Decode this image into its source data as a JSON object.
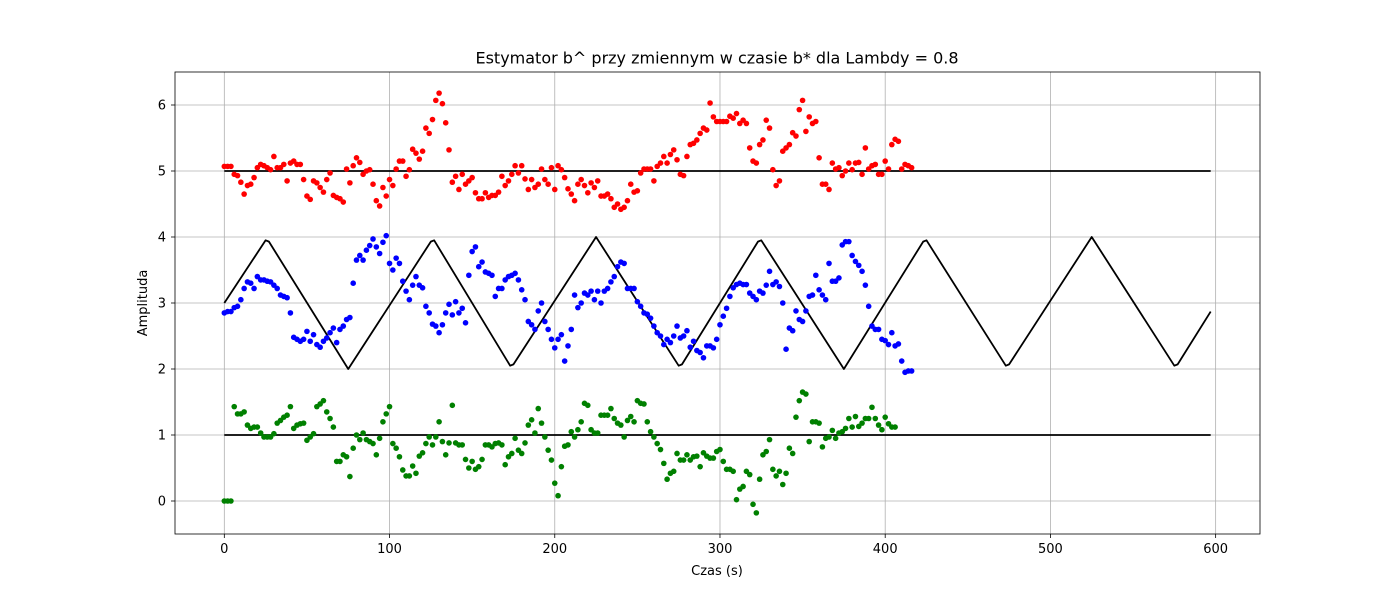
{
  "chart_data": {
    "type": "scatter",
    "title": "Estymator b^  przy zmiennym w czasie b* dla Lambdy = 0.8",
    "xlabel": "Czas (s)",
    "ylabel": "Amplituda",
    "xlim": [
      -29.85,
      626.85
    ],
    "ylim": [
      -0.5,
      6.5
    ],
    "xticks": [
      0,
      100,
      200,
      300,
      400,
      500,
      600
    ],
    "yticks": [
      0,
      1,
      2,
      3,
      4,
      5,
      6
    ],
    "grid": true,
    "x_step": 2,
    "reference_lines": [
      {
        "color": "#000000",
        "x": [
          0,
          597
        ],
        "y": [
          5,
          5
        ]
      },
      {
        "color": "#000000",
        "x": [
          0,
          597
        ],
        "y": [
          1,
          1
        ]
      },
      {
        "color": "#000000",
        "x": [
          0,
          25,
          27,
          75,
          125,
          127,
          173,
          175,
          225,
          275,
          277,
          323,
          325,
          375,
          423,
          425,
          473,
          475,
          525,
          575,
          577,
          597
        ],
        "y": [
          3,
          3.95,
          3.93,
          2.0,
          3.93,
          3.95,
          2.05,
          2.07,
          4.0,
          2.05,
          2.07,
          3.93,
          3.95,
          2.0,
          3.93,
          3.95,
          2.05,
          2.07,
          4.0,
          2.05,
          2.07,
          2.87
        ]
      }
    ],
    "series": [
      {
        "color": "#ff0000",
        "y": [
          5.07,
          5.07,
          5.07,
          4.95,
          4.93,
          4.83,
          4.65,
          4.78,
          4.8,
          4.9,
          5.05,
          5.1,
          5.08,
          5.05,
          5.02,
          5.22,
          5.05,
          5.05,
          5.1,
          4.85,
          5.12,
          5.15,
          5.1,
          5.1,
          4.87,
          4.62,
          4.57,
          4.85,
          4.82,
          4.75,
          4.68,
          4.87,
          4.97,
          4.63,
          4.6,
          4.58,
          4.53,
          5.03,
          4.82,
          5.08,
          5.2,
          5.13,
          4.95,
          5.0,
          5.02,
          4.8,
          4.55,
          4.47,
          4.75,
          4.62,
          4.87,
          4.78,
          5.03,
          5.15,
          5.15,
          4.92,
          5.02,
          5.33,
          5.27,
          5.18,
          5.3,
          5.65,
          5.57,
          5.78,
          6.07,
          6.18,
          6.02,
          5.73,
          5.32,
          4.83,
          4.92,
          4.72,
          4.95,
          4.8,
          4.85,
          4.9,
          4.67,
          4.58,
          4.58,
          4.67,
          4.6,
          4.63,
          4.63,
          4.68,
          4.92,
          4.78,
          4.85,
          4.95,
          5.08,
          4.97,
          5.08,
          4.88,
          4.72,
          4.87,
          4.75,
          4.8,
          5.03,
          4.87,
          4.8,
          5.05,
          4.72,
          5.08,
          5.02,
          4.9,
          4.73,
          4.65,
          4.55,
          4.8,
          4.87,
          4.78,
          4.67,
          4.82,
          4.75,
          4.85,
          4.62,
          4.62,
          4.65,
          4.58,
          4.45,
          4.5,
          4.42,
          4.45,
          4.55,
          4.8,
          4.68,
          4.7,
          4.97,
          5.03,
          5.03,
          5.03,
          4.85,
          5.07,
          5.12,
          5.22,
          5.12,
          5.25,
          5.32,
          5.17,
          4.95,
          4.93,
          5.22,
          5.4,
          5.42,
          5.47,
          5.57,
          5.65,
          5.62,
          6.03,
          5.82,
          5.75,
          5.75,
          5.75,
          5.75,
          5.83,
          5.8,
          5.87,
          5.72,
          5.77,
          5.72,
          5.35,
          5.15,
          5.12,
          5.4,
          5.47,
          5.77,
          5.65,
          5.02,
          4.78,
          4.85,
          5.3,
          5.35,
          5.4,
          5.58,
          5.53,
          5.93,
          6.07,
          5.6,
          5.82,
          5.72,
          5.75,
          5.2,
          4.8,
          4.8,
          4.72,
          5.12,
          5.03,
          5.05,
          4.93,
          5.0,
          5.12,
          5.02,
          5.12,
          5.13,
          4.95,
          5.35,
          5.03,
          5.08,
          5.1,
          4.95,
          4.95,
          5.15,
          5.03,
          5.4,
          5.48,
          5.45,
          5.03,
          5.1,
          5.08,
          5.05
        ]
      },
      {
        "color": "#0000ff",
        "y": [
          2.85,
          2.87,
          2.87,
          2.93,
          2.95,
          3.05,
          3.22,
          3.32,
          3.3,
          3.22,
          3.4,
          3.35,
          3.35,
          3.33,
          3.32,
          3.27,
          3.22,
          3.12,
          3.1,
          3.08,
          2.85,
          2.48,
          2.45,
          2.42,
          2.45,
          2.57,
          2.42,
          2.52,
          2.37,
          2.33,
          2.42,
          2.47,
          2.55,
          2.62,
          2.4,
          2.6,
          2.65,
          2.75,
          2.78,
          3.3,
          3.65,
          3.72,
          3.65,
          3.8,
          3.87,
          3.97,
          3.85,
          3.75,
          3.92,
          4.02,
          3.6,
          3.5,
          3.68,
          3.6,
          3.33,
          3.18,
          3.05,
          3.27,
          3.4,
          3.27,
          3.23,
          2.95,
          2.85,
          2.68,
          2.65,
          2.55,
          2.67,
          2.85,
          2.98,
          2.82,
          3.02,
          2.85,
          2.92,
          2.7,
          3.42,
          3.78,
          3.85,
          3.55,
          3.62,
          3.47,
          3.45,
          3.42,
          3.1,
          3.22,
          3.22,
          3.35,
          3.4,
          3.42,
          3.45,
          3.35,
          3.2,
          3.05,
          2.72,
          2.67,
          2.6,
          2.88,
          3.0,
          2.72,
          2.6,
          2.45,
          2.32,
          2.45,
          2.52,
          2.12,
          2.35,
          2.6,
          3.12,
          2.93,
          3.0,
          3.15,
          3.12,
          3.18,
          3.05,
          3.18,
          3.0,
          3.18,
          3.22,
          3.32,
          3.4,
          3.55,
          3.62,
          3.6,
          3.22,
          3.22,
          3.22,
          3.02,
          2.95,
          2.85,
          2.83,
          2.77,
          2.65,
          2.55,
          2.5,
          2.37,
          2.45,
          2.4,
          2.5,
          2.65,
          2.47,
          2.5,
          2.58,
          2.33,
          2.42,
          2.28,
          2.25,
          2.17,
          2.35,
          2.35,
          2.32,
          2.45,
          2.67,
          2.8,
          2.92,
          3.1,
          3.23,
          3.28,
          3.3,
          3.28,
          3.28,
          3.15,
          3.1,
          3.05,
          3.18,
          3.15,
          3.27,
          3.48,
          3.28,
          3.32,
          3.25,
          3.0,
          2.3,
          2.62,
          2.58,
          2.88,
          2.75,
          2.72,
          2.88,
          3.1,
          3.12,
          3.42,
          3.2,
          3.12,
          3.05,
          3.6,
          3.33,
          3.33,
          3.38,
          3.88,
          3.93,
          3.93,
          3.72,
          3.63,
          3.57,
          3.48,
          3.27,
          2.95,
          2.65,
          2.6,
          2.6,
          2.45,
          2.43,
          2.37,
          2.55,
          2.35,
          2.38,
          2.12,
          1.95,
          1.97,
          1.97
        ]
      },
      {
        "color": "#008000",
        "y": [
          0.0,
          0.0,
          0.0,
          1.43,
          1.32,
          1.32,
          1.35,
          1.15,
          1.1,
          1.12,
          1.12,
          1.03,
          0.97,
          0.97,
          0.97,
          1.02,
          1.18,
          1.22,
          1.27,
          1.3,
          1.43,
          1.1,
          1.15,
          1.17,
          1.18,
          0.92,
          0.97,
          1.02,
          1.43,
          1.47,
          1.52,
          1.35,
          1.25,
          1.12,
          0.6,
          0.6,
          0.7,
          0.67,
          0.37,
          0.8,
          1.0,
          0.93,
          1.03,
          0.93,
          0.9,
          0.87,
          0.7,
          0.95,
          1.2,
          1.32,
          1.43,
          0.87,
          0.8,
          0.67,
          0.47,
          0.38,
          0.38,
          0.53,
          0.42,
          0.68,
          0.73,
          0.87,
          0.97,
          0.85,
          0.97,
          1.2,
          0.9,
          0.7,
          0.88,
          1.45,
          0.88,
          0.85,
          0.85,
          0.63,
          0.5,
          0.6,
          0.48,
          0.52,
          0.63,
          0.85,
          0.85,
          0.82,
          0.87,
          0.88,
          0.85,
          0.55,
          0.67,
          0.72,
          0.95,
          0.77,
          0.72,
          0.88,
          1.15,
          1.23,
          1.03,
          1.4,
          1.18,
          0.97,
          0.77,
          0.62,
          0.27,
          0.08,
          0.52,
          0.83,
          0.85,
          1.05,
          0.97,
          1.08,
          1.2,
          1.48,
          1.45,
          1.08,
          1.03,
          1.03,
          1.3,
          1.3,
          1.3,
          1.4,
          1.25,
          1.18,
          1.15,
          0.97,
          1.22,
          1.28,
          1.2,
          1.52,
          1.48,
          1.47,
          1.2,
          1.05,
          0.97,
          0.87,
          0.78,
          0.57,
          0.33,
          0.42,
          0.45,
          0.72,
          0.62,
          0.62,
          0.7,
          0.62,
          0.67,
          0.68,
          0.52,
          0.73,
          0.68,
          0.65,
          0.65,
          0.75,
          0.78,
          0.6,
          0.48,
          0.48,
          0.45,
          0.02,
          0.18,
          0.22,
          0.45,
          0.4,
          -0.05,
          -0.18,
          0.33,
          0.7,
          0.75,
          0.93,
          0.48,
          0.38,
          0.45,
          0.25,
          0.42,
          0.8,
          0.72,
          1.27,
          1.52,
          1.65,
          1.62,
          0.9,
          1.2,
          1.2,
          1.18,
          0.82,
          0.95,
          0.97,
          1.07,
          0.95,
          1.03,
          1.05,
          1.1,
          1.25,
          1.12,
          1.28,
          1.13,
          1.18,
          1.25,
          1.25,
          1.42,
          1.25,
          1.15,
          1.08,
          1.27,
          1.17,
          1.12,
          1.12
        ]
      }
    ]
  }
}
